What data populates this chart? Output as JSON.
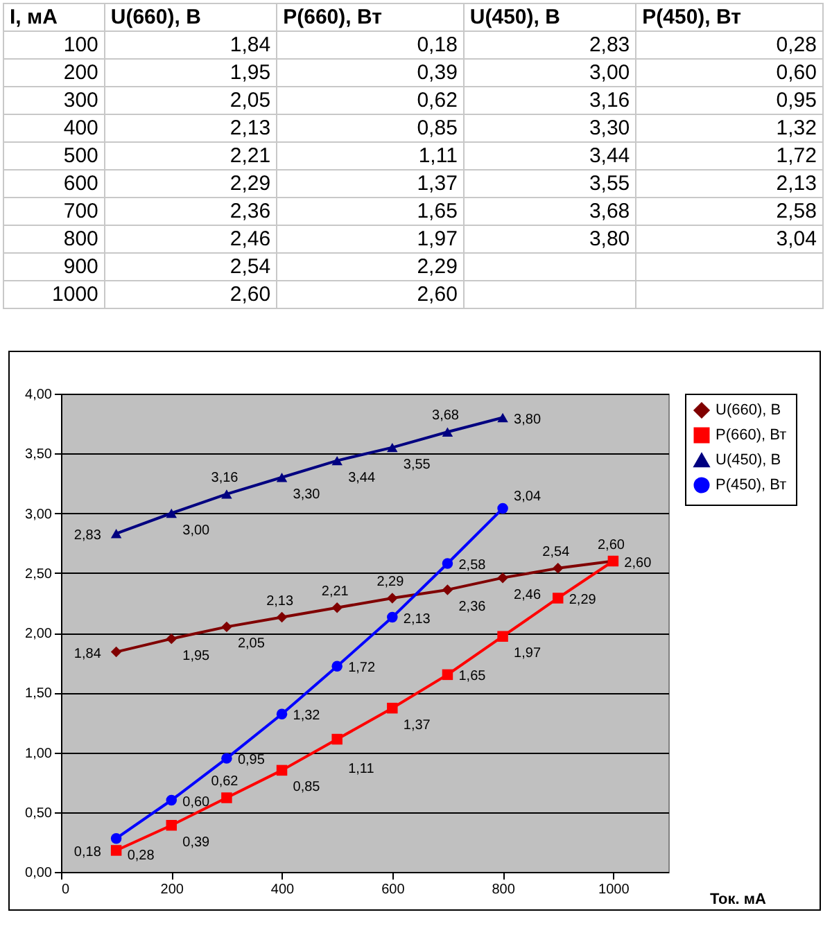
{
  "chart_data": {
    "type": "line",
    "annotations": [
      "I, мА",
      "100",
      "200",
      "300",
      "400",
      "500",
      "600",
      "700",
      "800",
      "900",
      "1000"
    ],
    "xlabel": "Ток. мА",
    "x": [
      100,
      200,
      300,
      400,
      500,
      600,
      700,
      800,
      900,
      1000
    ],
    "series": [
      {
        "name": "U(660), В",
        "color": "#800000",
        "marker": "diamond",
        "values": [
          1.84,
          1.95,
          2.05,
          2.13,
          2.21,
          2.29,
          2.36,
          2.46,
          2.54,
          2.6
        ],
        "value_labels": [
          "1,84",
          "1,95",
          "2,05",
          "2,13",
          "2,21",
          "2,29",
          "2,36",
          "2,46",
          "2,54",
          "2,60"
        ]
      },
      {
        "name": "P(660), Вт",
        "color": "#ff0000",
        "marker": "square",
        "values": [
          0.18,
          0.39,
          0.62,
          0.85,
          1.11,
          1.37,
          1.65,
          1.97,
          2.29,
          2.6
        ],
        "value_labels": [
          "0,18",
          "0,39",
          "0,62",
          "0,85",
          "1,11",
          "1,37",
          "1,65",
          "1,97",
          "2,29",
          "2,60"
        ]
      },
      {
        "name": "U(450), В",
        "color": "#000080",
        "marker": "triangle",
        "values": [
          2.83,
          3.0,
          3.16,
          3.3,
          3.44,
          3.55,
          3.68,
          3.8,
          null,
          null
        ],
        "value_labels": [
          "2,83",
          "3,00",
          "3,16",
          "3,30",
          "3,44",
          "3,55",
          "3,68",
          "3,80",
          null,
          null
        ]
      },
      {
        "name": "P(450), Вт",
        "color": "#0000ff",
        "marker": "circle",
        "values": [
          0.28,
          0.6,
          0.95,
          1.32,
          1.72,
          2.13,
          2.58,
          3.04,
          null,
          null
        ],
        "value_labels": [
          "0,28",
          "0,60",
          "0,95",
          "1,32",
          "1,72",
          "2,13",
          "2,58",
          "3,04",
          null,
          null
        ]
      }
    ],
    "xlim": [
      0,
      1100
    ],
    "xticks": [
      0,
      200,
      400,
      600,
      800,
      1000
    ],
    "ylim": [
      0,
      4
    ],
    "yticks": [
      {
        "value": 0,
        "label": "0,00"
      },
      {
        "value": 0.5,
        "label": "0,50"
      },
      {
        "value": 1,
        "label": "1,00"
      },
      {
        "value": 1.5,
        "label": "1,50"
      },
      {
        "value": 2,
        "label": "2,00"
      },
      {
        "value": 2.5,
        "label": "2,50"
      },
      {
        "value": 3,
        "label": "3,00"
      },
      {
        "value": 3.5,
        "label": "3,50"
      },
      {
        "value": 4,
        "label": "4,00"
      }
    ],
    "grid": "y",
    "legend": "right",
    "line_style": "solid"
  }
}
